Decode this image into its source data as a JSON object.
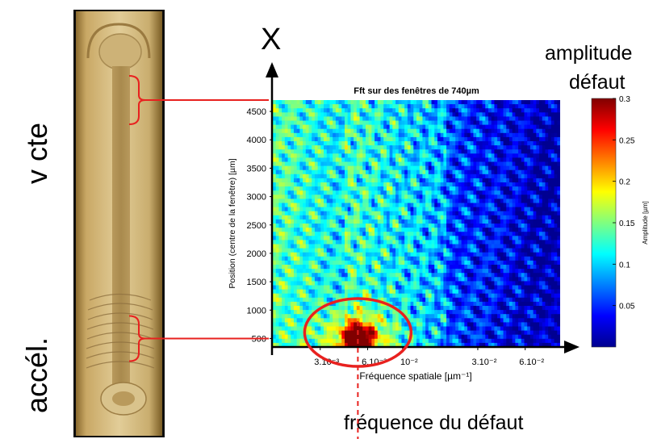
{
  "left_labels": {
    "top": "v cte",
    "bottom": "accél."
  },
  "axis_arrow_label": "X",
  "colorbar_header": [
    "amplitude",
    "défaut"
  ],
  "defect_label": "fréquence du défaut",
  "chart_data": {
    "type": "heatmap",
    "title": "Fft sur des fenêtres de 740µm",
    "xlabel": "Fréquence spatiale [µm⁻¹]",
    "ylabel": "Position (centre de la fenêtre) [µm]",
    "x_scale": "log",
    "x_ticks": [
      "3.10⁻³",
      "6.10⁻³",
      "10⁻²",
      "3.10⁻²",
      "6.10⁻²"
    ],
    "x_tick_values": [
      0.003,
      0.006,
      0.01,
      0.03,
      0.06
    ],
    "xlim": [
      0.0015,
      0.1
    ],
    "ylim": [
      350,
      4700
    ],
    "y_ticks": [
      500,
      1000,
      1500,
      2000,
      2500,
      3000,
      3500,
      4000,
      4500
    ],
    "colorbar": {
      "label": "Amplitude [µm]",
      "range": [
        0,
        0.3
      ],
      "ticks": [
        0.05,
        0.1,
        0.15,
        0.2,
        0.25,
        0.3
      ],
      "colormap": "jet"
    },
    "peak": {
      "frequency": 0.0052,
      "position": 500,
      "amplitude": 0.3
    },
    "defect_frequency": 0.0052,
    "highlight_positions": [
      4700,
      500
    ]
  },
  "colors": {
    "red_marker": "#e8211f",
    "arrow": "#000000",
    "low": "#00008f",
    "high": "#800000"
  }
}
